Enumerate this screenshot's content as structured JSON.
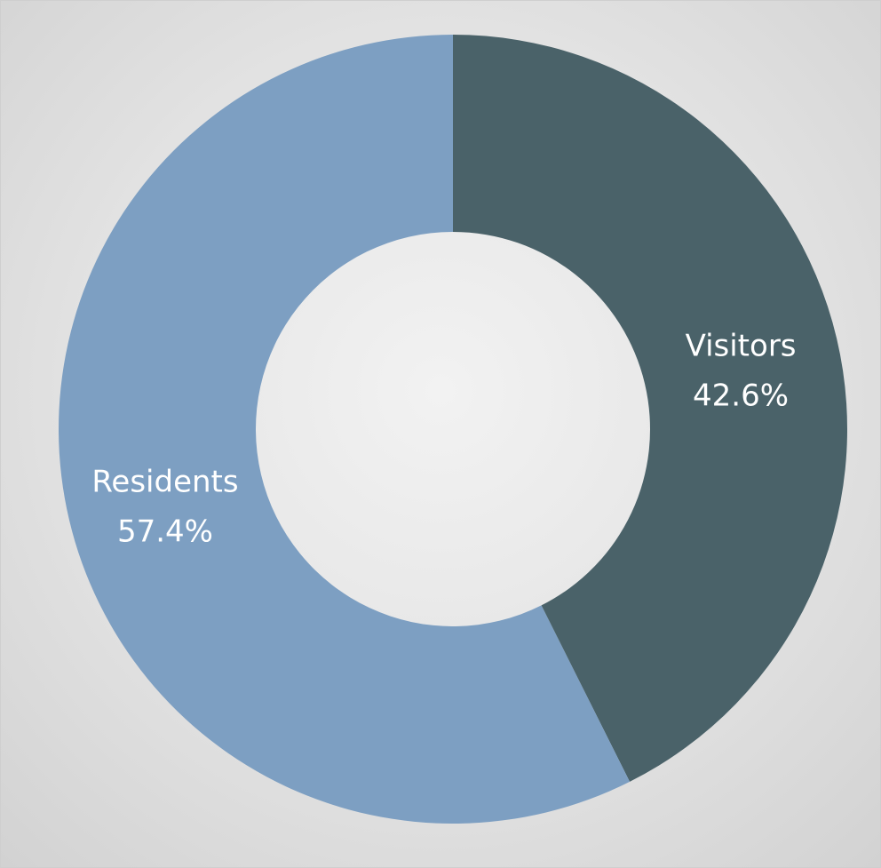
{
  "chart_data": {
    "type": "pie",
    "donut": true,
    "title": "",
    "slices": [
      {
        "label": "Visitors",
        "value": 42.6,
        "display": "42.6%",
        "color": "#4a6269"
      },
      {
        "label": "Residents",
        "value": 57.4,
        "display": "57.4%",
        "color": "#7d9fc2"
      }
    ],
    "start": "top",
    "direction": "clockwise",
    "legend": "none",
    "background": "#e6e6e6"
  }
}
